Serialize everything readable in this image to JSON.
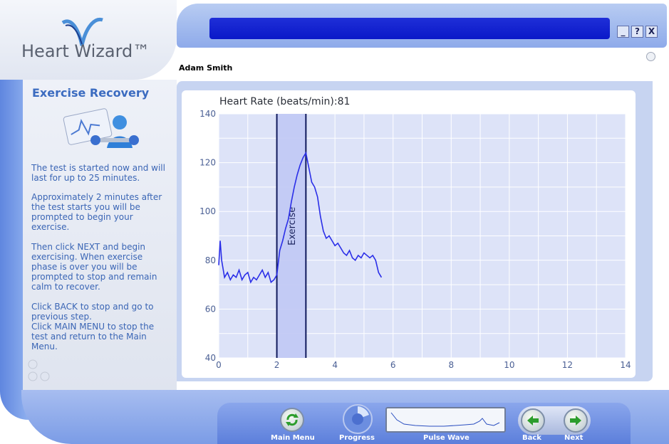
{
  "app": {
    "logo_text": "Heart Wizard™",
    "window_buttons": [
      "_",
      "?",
      "X"
    ]
  },
  "user": {
    "name": "Adam Smith"
  },
  "left_panel": {
    "title": "Exercise Recovery",
    "paragraphs": [
      "The test is started now and will last for up to 25 minutes.",
      "Approximately 2 minutes after the test starts you will be prompted to begin your exercise.",
      "Then click NEXT and begin exercising. When exercise phase is over you will be prompted to stop and remain calm to recover.",
      "Click BACK to stop and go to previous step.\nClick MAIN MENU to stop the test and return to the Main Menu."
    ]
  },
  "chart_header": {
    "label": "Heart Rate (beats/min):",
    "value": "81"
  },
  "chart_data": {
    "type": "line",
    "title": "Heart Rate (beats/min):81",
    "xlabel": "",
    "ylabel": "",
    "xlim": [
      0,
      14
    ],
    "ylim": [
      40,
      140
    ],
    "x_ticks": [
      0,
      2,
      4,
      6,
      8,
      10,
      12,
      14
    ],
    "y_ticks": [
      40,
      60,
      80,
      100,
      120,
      140
    ],
    "grid": true,
    "shaded_region": {
      "label": "Exercise",
      "x_start": 2.0,
      "x_end": 3.0
    },
    "series": [
      {
        "color": "#2a2ee8",
        "points": [
          [
            0.0,
            78
          ],
          [
            0.05,
            88
          ],
          [
            0.1,
            80
          ],
          [
            0.2,
            73
          ],
          [
            0.3,
            75
          ],
          [
            0.4,
            72
          ],
          [
            0.5,
            74
          ],
          [
            0.6,
            73
          ],
          [
            0.7,
            76
          ],
          [
            0.8,
            72
          ],
          [
            0.9,
            74
          ],
          [
            1.0,
            75
          ],
          [
            1.1,
            71
          ],
          [
            1.2,
            73
          ],
          [
            1.3,
            72
          ],
          [
            1.4,
            74
          ],
          [
            1.5,
            76
          ],
          [
            1.6,
            73
          ],
          [
            1.7,
            75
          ],
          [
            1.8,
            71
          ],
          [
            1.9,
            72
          ],
          [
            2.0,
            74
          ],
          [
            2.1,
            84
          ],
          [
            2.2,
            88
          ],
          [
            2.3,
            93
          ],
          [
            2.4,
            97
          ],
          [
            2.5,
            104
          ],
          [
            2.6,
            110
          ],
          [
            2.7,
            115
          ],
          [
            2.8,
            119
          ],
          [
            2.9,
            122
          ],
          [
            3.0,
            124
          ],
          [
            3.1,
            118
          ],
          [
            3.2,
            112
          ],
          [
            3.3,
            110
          ],
          [
            3.4,
            106
          ],
          [
            3.5,
            98
          ],
          [
            3.6,
            92
          ],
          [
            3.7,
            89
          ],
          [
            3.8,
            90
          ],
          [
            3.9,
            88
          ],
          [
            4.0,
            86
          ],
          [
            4.1,
            87
          ],
          [
            4.2,
            85
          ],
          [
            4.3,
            83
          ],
          [
            4.4,
            82
          ],
          [
            4.5,
            84
          ],
          [
            4.6,
            81
          ],
          [
            4.7,
            80
          ],
          [
            4.8,
            82
          ],
          [
            4.9,
            81
          ],
          [
            5.0,
            83
          ],
          [
            5.1,
            82
          ],
          [
            5.2,
            81
          ],
          [
            5.3,
            82
          ],
          [
            5.4,
            80
          ],
          [
            5.5,
            75
          ],
          [
            5.6,
            73
          ]
        ]
      }
    ]
  },
  "bottom_bar": {
    "main_menu_label": "Main Menu",
    "progress_label": "Progress",
    "pulse_wave_label": "Pulse Wave",
    "back_label": "Back",
    "next_label": "Next"
  },
  "colors": {
    "accent": "#3b6bc0",
    "title_bar": "#0a18c8",
    "plot_line": "#2a2ee8",
    "exercise_band": "#c0c8f4"
  }
}
